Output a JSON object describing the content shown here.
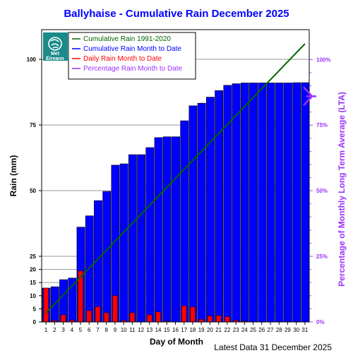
{
  "chart_data": {
    "type": "bar",
    "title": "Ballyhaise - Cumulative Rain December   2025",
    "xlabel": "Day of Month",
    "ylabel": "Rain (mm)",
    "y2label": "Percentage  of Monthly Long Term Average (LTA)",
    "ylim": [
      0,
      112
    ],
    "y_ticks": [
      0,
      5,
      10,
      15,
      20,
      25,
      50,
      75,
      100
    ],
    "y2_ticks": [
      "0%",
      "25%",
      "50%",
      "75%",
      "100%"
    ],
    "y2_range_pct": [
      0,
      106
    ],
    "categories": [
      "1",
      "2",
      "3",
      "4",
      "5",
      "6",
      "7",
      "8",
      "9",
      "10",
      "11",
      "12",
      "13",
      "14",
      "15",
      "16",
      "17",
      "18",
      "19",
      "20",
      "21",
      "22",
      "23",
      "24",
      "25",
      "26",
      "27",
      "28",
      "29",
      "30",
      "31"
    ],
    "legend_position": "top-left",
    "grid": true,
    "series": [
      {
        "name": "Cumulative Rain Month to Date",
        "type": "bar",
        "color": "#0000ff",
        "values": [
          12.9,
          13.4,
          16.1,
          16.7,
          36.1,
          40.4,
          46.2,
          49.7,
          59.7,
          60.2,
          63.7,
          63.7,
          66.4,
          70.2,
          70.5,
          70.5,
          76.6,
          82.3,
          83.3,
          85.6,
          88.1,
          90.1,
          90.7,
          91.0,
          91.0,
          91.0,
          91.0,
          91.0,
          91.0,
          91.1,
          91.1
        ]
      },
      {
        "name": "Daily Rain Month to Date",
        "type": "bar",
        "color": "#ff0000",
        "values": [
          12.9,
          0.5,
          2.7,
          0.6,
          19.4,
          4.3,
          5.8,
          3.5,
          10.0,
          0.5,
          3.5,
          0.0,
          2.7,
          3.8,
          0.3,
          0.0,
          6.1,
          5.7,
          1.0,
          2.3,
          2.5,
          2.0,
          0.6,
          0.3,
          0.0,
          0.0,
          0.0,
          0.0,
          0.0,
          0.1,
          0.0
        ]
      },
      {
        "name": "Cumulative Rain 1991-2020",
        "type": "line",
        "color": "#006600",
        "x": [
          1,
          31
        ],
        "values": [
          3.4,
          105.9
        ]
      },
      {
        "name": "Percentage Rain Month to Date",
        "type": "marker",
        "color": "#9933ff",
        "value_pct": 86
      }
    ],
    "footer": "Latest Data 31 December 2025"
  },
  "logo": {
    "line1": "Met",
    "line2": "Éireann",
    "bg_color": "#1a8a8a",
    "icon": "met-eireann-swirl-logo"
  }
}
